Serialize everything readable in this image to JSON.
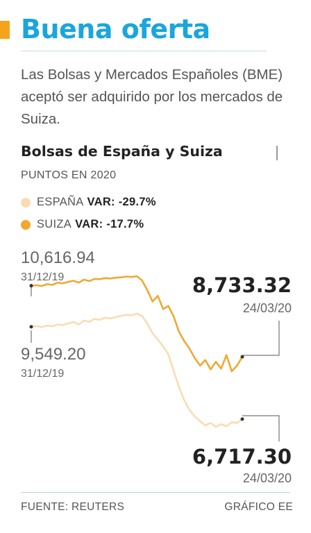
{
  "header": {
    "title": "Buena oferta",
    "title_color": "#1aa6dd",
    "accent_color": "#f6a31c"
  },
  "dek": "Las Bolsas y Mercados Españoles (BME) aceptó ser adquirido por los mercados de Suiza.",
  "chart_data": {
    "type": "line",
    "title": "Bolsas de España y Suiza",
    "subtitle": "PUNTOS EN 2020",
    "series": [
      {
        "name": "ESPAÑA",
        "var_label": "VAR: -29.7%",
        "color": "#f9dcb2",
        "start": {
          "value": 9549.2,
          "value_label": "9,549.20",
          "date": "31/12/19"
        },
        "end": {
          "value": 6717.3,
          "value_label": "6,717.30",
          "date": "24/03/20"
        },
        "values": [
          9549.2,
          9570,
          9540,
          9585,
          9560,
          9620,
          9600,
          9650,
          9700,
          9620,
          9740,
          9700,
          9790,
          9760,
          9830,
          9800,
          9850,
          9880,
          9920,
          9900,
          9950,
          9880,
          9650,
          9350,
          9150,
          8950,
          8700,
          8200,
          7700,
          7300,
          7000,
          6800,
          6650,
          6520,
          6600,
          6480,
          6560,
          6500,
          6620,
          6600,
          6717.3
        ]
      },
      {
        "name": "SUIZA",
        "var_label": "VAR: -17.7%",
        "color": "#f1a831",
        "start": {
          "value": 10616.94,
          "value_label": "10,616.94",
          "date": "31/12/19"
        },
        "end": {
          "value": 8733.32,
          "value_label": "8,733.32",
          "date": "24/03/20"
        },
        "values": [
          10616.94,
          10630,
          10610,
          10660,
          10640,
          10700,
          10680,
          10720,
          10750,
          10700,
          10780,
          10740,
          10800,
          10790,
          10820,
          10810,
          10830,
          10840,
          10860,
          10850,
          10870,
          10760,
          10500,
          10200,
          10350,
          10000,
          10080,
          9800,
          9400,
          9150,
          8950,
          8700,
          8500,
          8650,
          8400,
          8600,
          8420,
          8780,
          8350,
          8500,
          8733.32
        ]
      }
    ],
    "source": "FUENTE: REUTERS",
    "credit": "GRÁFICO EE"
  }
}
